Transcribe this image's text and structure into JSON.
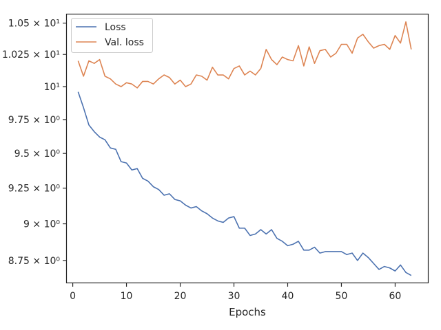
{
  "chart_data": {
    "type": "line",
    "xlabel": "Epochs",
    "ylabel": "",
    "xlim": [
      -1.1,
      66.1
    ],
    "ylim": [
      8.603,
      10.57
    ],
    "yscale": "log",
    "grid": false,
    "legend_position": "top-left",
    "xticks": [
      0,
      10,
      20,
      30,
      40,
      50,
      60
    ],
    "yticks": [
      {
        "value": 8.75,
        "label": "8.75 × 10⁰"
      },
      {
        "value": 9.0,
        "label": "9 × 10⁰"
      },
      {
        "value": 9.25,
        "label": "9.25 × 10⁰"
      },
      {
        "value": 9.5,
        "label": "9.5 × 10⁰"
      },
      {
        "value": 9.75,
        "label": "9.75 × 10⁰"
      },
      {
        "value": 10.0,
        "label": "10¹"
      },
      {
        "value": 10.25,
        "label": "1.025 × 10¹"
      },
      {
        "value": 10.5,
        "label": "1.05 × 10¹"
      }
    ],
    "x": [
      1,
      2,
      3,
      4,
      5,
      6,
      7,
      8,
      9,
      10,
      11,
      12,
      13,
      14,
      15,
      16,
      17,
      18,
      19,
      20,
      21,
      22,
      23,
      24,
      25,
      26,
      27,
      28,
      29,
      30,
      31,
      32,
      33,
      34,
      35,
      36,
      37,
      38,
      39,
      40,
      41,
      42,
      43,
      44,
      45,
      46,
      47,
      48,
      49,
      50,
      51,
      52,
      53,
      54,
      55,
      56,
      57,
      58,
      59,
      60,
      61,
      62,
      63
    ],
    "series": [
      {
        "name": "Loss",
        "color": "#4c72b0",
        "values": [
          9.96,
          9.84,
          9.71,
          9.66,
          9.62,
          9.6,
          9.54,
          9.53,
          9.44,
          9.43,
          9.38,
          9.39,
          9.32,
          9.3,
          9.26,
          9.24,
          9.2,
          9.21,
          9.17,
          9.16,
          9.13,
          9.11,
          9.12,
          9.09,
          9.07,
          9.04,
          9.02,
          9.01,
          9.04,
          9.05,
          8.97,
          8.97,
          8.92,
          8.93,
          8.96,
          8.93,
          8.96,
          8.9,
          8.88,
          8.85,
          8.86,
          8.88,
          8.82,
          8.82,
          8.84,
          8.8,
          8.81,
          8.81,
          8.81,
          8.81,
          8.79,
          8.8,
          8.75,
          8.8,
          8.77,
          8.73,
          8.69,
          8.71,
          8.7,
          8.68,
          8.72,
          8.67,
          8.65
        ]
      },
      {
        "name": "Val. loss",
        "color": "#dd8452",
        "values": [
          10.2,
          10.08,
          10.2,
          10.18,
          10.21,
          10.08,
          10.06,
          10.02,
          10.0,
          10.03,
          10.02,
          9.99,
          10.04,
          10.04,
          10.02,
          10.06,
          10.09,
          10.07,
          10.02,
          10.05,
          10.0,
          10.02,
          10.09,
          10.08,
          10.05,
          10.15,
          10.09,
          10.09,
          10.06,
          10.14,
          10.16,
          10.09,
          10.12,
          10.09,
          10.14,
          10.29,
          10.21,
          10.17,
          10.23,
          10.21,
          10.2,
          10.32,
          10.16,
          10.31,
          10.18,
          10.28,
          10.29,
          10.23,
          10.26,
          10.33,
          10.33,
          10.26,
          10.38,
          10.41,
          10.35,
          10.3,
          10.32,
          10.33,
          10.29,
          10.4,
          10.34,
          10.51,
          10.29
        ]
      }
    ]
  }
}
